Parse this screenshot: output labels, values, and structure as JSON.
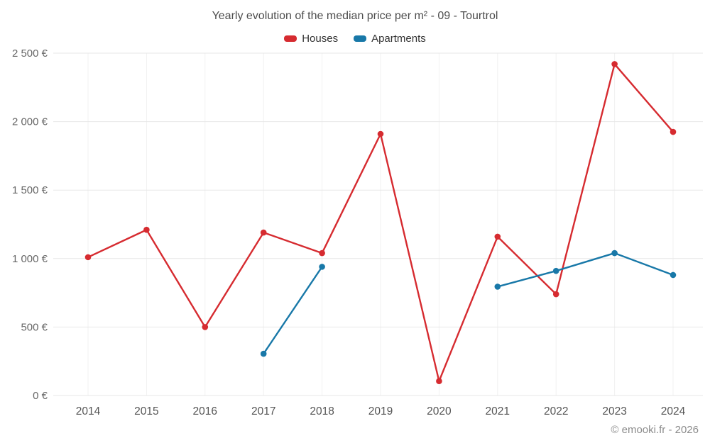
{
  "header": {
    "title": "Yearly evolution of the median price per m² - 09 - Tourtrol"
  },
  "legend": {
    "items": [
      {
        "label": "Houses",
        "color": "#d62b30"
      },
      {
        "label": "Apartments",
        "color": "#1878a8"
      }
    ]
  },
  "footer": {
    "credit": "© emooki.fr - 2026"
  },
  "chart_data": {
    "type": "line",
    "title": "Yearly evolution of the median price per m² - 09 - Tourtrol",
    "xlabel": "",
    "ylabel": "",
    "categories": [
      "2014",
      "2015",
      "2016",
      "2017",
      "2018",
      "2019",
      "2020",
      "2021",
      "2022",
      "2023",
      "2024"
    ],
    "series": [
      {
        "name": "Houses",
        "color": "#d62b30",
        "values": [
          1010,
          1210,
          500,
          1190,
          1040,
          1910,
          105,
          1160,
          740,
          2420,
          1925
        ]
      },
      {
        "name": "Apartments",
        "color": "#1878a8",
        "values": [
          null,
          null,
          null,
          305,
          940,
          null,
          null,
          795,
          910,
          1040,
          880
        ]
      }
    ],
    "ylim": [
      0,
      2500
    ],
    "yticks": [
      {
        "value": 0,
        "label": "0 €"
      },
      {
        "value": 500,
        "label": "500 €"
      },
      {
        "value": 1000,
        "label": "1 000 €"
      },
      {
        "value": 1500,
        "label": "1 500 €"
      },
      {
        "value": 2000,
        "label": "2 000 €"
      },
      {
        "value": 2500,
        "label": "2 500 €"
      }
    ],
    "grid": true,
    "legend_position": "top"
  }
}
